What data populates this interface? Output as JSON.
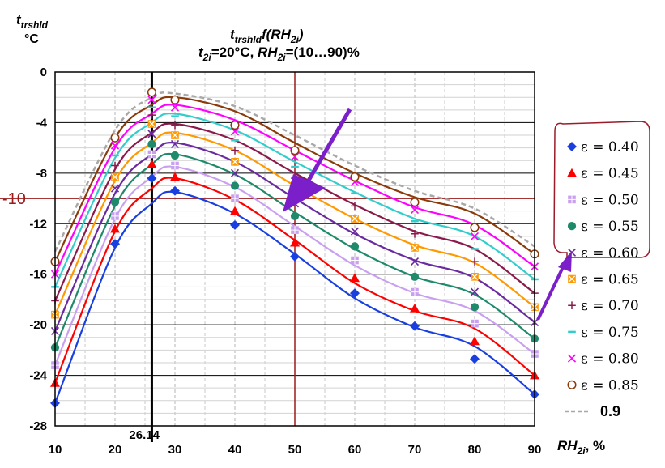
{
  "chart_data": {
    "type": "line",
    "title_main": "f(RH",
    "title_func_var": "t",
    "title_func_sub": "trshld",
    "title_sub_func": "2i",
    "title_close": ")",
    "title_line2_var": "t",
    "title_line2_sub": "2i",
    "title_line2_mid": "=20°C, ",
    "title_line2_rh": "RH",
    "title_line2_rh_sub": "2i",
    "title_line2_end": "=(10…90)%",
    "ylabel_var": "t",
    "ylabel_sub": "trshld",
    "ylabel_unit": "°C",
    "xlabel_var": "RH",
    "xlabel_sub": "2i",
    "xlabel_unit": ", %",
    "xlim": [
      10,
      90
    ],
    "ylim": [
      -28,
      0
    ],
    "xticks": [
      10,
      20,
      30,
      40,
      50,
      60,
      70,
      80,
      90
    ],
    "yticks": [
      0,
      -4,
      -8,
      -12,
      -16,
      -20,
      -24,
      -28
    ],
    "vline_x": 26.14,
    "vline_label": "26.14",
    "ref_y": -10,
    "ref_y_label": "-10",
    "ref_x": 50,
    "series": [
      {
        "name": "ε = 0.40",
        "eps_label": "ε = 0.40",
        "color": "#1a3fe0",
        "marker": "diamond",
        "x": [
          10,
          20,
          26.14,
          30,
          40,
          50,
          60,
          70,
          80,
          90
        ],
        "points": [
          -26.2,
          -13.6,
          -8.4,
          -9.4,
          -12.1,
          -14.6,
          -17.5,
          -20.1,
          -22.7,
          -25.5
        ],
        "curve": [
          -26.2,
          -13.9,
          -10.4,
          -9.5,
          -11.2,
          -14.4,
          -17.9,
          -20.2,
          -21.7,
          -25.5
        ]
      },
      {
        "name": "ε = 0.45",
        "eps_label": "ε = 0.45",
        "color": "#ff0000",
        "marker": "triangle",
        "x": [
          10,
          20,
          26.14,
          30,
          40,
          50,
          60,
          70,
          80,
          90
        ],
        "points": [
          -24.6,
          -12.4,
          -7.3,
          -8.3,
          -11.0,
          -13.5,
          -16.3,
          -18.7,
          -21.3,
          -24.0
        ],
        "curve": [
          -24.6,
          -12.6,
          -9.2,
          -8.4,
          -10.1,
          -13.3,
          -16.7,
          -18.9,
          -20.3,
          -24.0
        ]
      },
      {
        "name": "ε = 0.50",
        "eps_label": "ε = 0.50",
        "color": "#c9a0f0",
        "marker": "square-plus",
        "x": [
          10,
          20,
          26.14,
          30,
          40,
          50,
          60,
          70,
          80,
          90
        ],
        "points": [
          -23.2,
          -11.4,
          -6.5,
          -7.4,
          -10.0,
          -12.5,
          -14.9,
          -17.4,
          -19.9,
          -22.3
        ],
        "curve": [
          -23.2,
          -11.6,
          -8.3,
          -7.5,
          -9.1,
          -12.2,
          -15.3,
          -17.5,
          -18.9,
          -22.3
        ]
      },
      {
        "name": "ε = 0.55",
        "eps_label": "ε = 0.55",
        "color": "#1e8a6a",
        "marker": "circle",
        "x": [
          10,
          20,
          26.14,
          30,
          40,
          50,
          60,
          70,
          80,
          90
        ],
        "points": [
          -21.8,
          -10.3,
          -5.7,
          -6.6,
          -9.0,
          -11.4,
          -13.8,
          -16.2,
          -18.6,
          -21.1
        ],
        "curve": [
          -21.8,
          -10.6,
          -7.3,
          -6.5,
          -8.1,
          -11.1,
          -14.0,
          -16.2,
          -17.6,
          -21.1
        ]
      },
      {
        "name": "ε = 0.60",
        "eps_label": "ε = 0.60",
        "color": "#6a2aa0",
        "marker": "x",
        "x": [
          10,
          20,
          26.14,
          30,
          40,
          50,
          60,
          70,
          80,
          90
        ],
        "points": [
          -20.5,
          -9.2,
          -4.9,
          -5.7,
          -8.0,
          -10.4,
          -12.6,
          -15.0,
          -17.4,
          -19.8
        ],
        "curve": [
          -20.5,
          -9.6,
          -6.5,
          -5.6,
          -7.1,
          -10.0,
          -12.8,
          -14.9,
          -16.3,
          -19.8
        ]
      },
      {
        "name": "ε = 0.65",
        "eps_label": "ε = 0.65",
        "color": "#ff9900",
        "marker": "square-x",
        "x": [
          10,
          20,
          26.14,
          30,
          40,
          50,
          60,
          70,
          80,
          90
        ],
        "points": [
          -19.2,
          -8.3,
          -4.1,
          -5.0,
          -7.1,
          -9.3,
          -11.6,
          -13.9,
          -16.2,
          -18.6
        ],
        "curve": [
          -19.2,
          -8.6,
          -5.6,
          -4.8,
          -6.2,
          -9.0,
          -11.6,
          -13.7,
          -15.1,
          -18.6
        ]
      },
      {
        "name": "ε = 0.70",
        "eps_label": "ε = 0.70",
        "color": "#8a1a4a",
        "marker": "plus",
        "x": [
          10,
          20,
          26.14,
          30,
          40,
          50,
          60,
          70,
          80,
          90
        ],
        "points": [
          -18.1,
          -7.4,
          -3.4,
          -4.2,
          -6.2,
          -8.4,
          -10.6,
          -12.8,
          -15.0,
          -17.5
        ],
        "curve": [
          -18.1,
          -7.7,
          -4.8,
          -4.1,
          -5.4,
          -8.0,
          -10.5,
          -12.6,
          -14.0,
          -17.5
        ]
      },
      {
        "name": "ε = 0.75",
        "eps_label": "ε = 0.75",
        "color": "#33cccc",
        "marker": "dash",
        "x": [
          10,
          20,
          26.14,
          30,
          40,
          50,
          60,
          70,
          80,
          90
        ],
        "points": [
          -17.0,
          -6.6,
          -2.8,
          -3.5,
          -5.4,
          -7.5,
          -9.6,
          -11.8,
          -14.0,
          -16.4
        ],
        "curve": [
          -17.0,
          -6.8,
          -4.0,
          -3.3,
          -4.6,
          -7.1,
          -9.5,
          -11.6,
          -13.0,
          -16.4
        ]
      },
      {
        "name": "ε = 0.80",
        "eps_label": "ε = 0.80",
        "color": "#ff00ff",
        "marker": "x",
        "x": [
          10,
          20,
          26.14,
          30,
          40,
          50,
          60,
          70,
          80,
          90
        ],
        "points": [
          -16.0,
          -5.8,
          -2.2,
          -2.8,
          -4.7,
          -6.7,
          -8.7,
          -10.9,
          -13.0,
          -15.4
        ],
        "curve": [
          -16.0,
          -6.0,
          -3.3,
          -2.6,
          -3.8,
          -6.2,
          -8.6,
          -10.7,
          -12.1,
          -15.4
        ]
      },
      {
        "name": "ε = 0.85",
        "eps_label": "ε = 0.85",
        "color": "#8b3a0a",
        "marker": "open-circle",
        "x": [
          10,
          20,
          26.14,
          30,
          40,
          50,
          60,
          70,
          80,
          90
        ],
        "points": [
          -15.0,
          -5.2,
          -1.6,
          -2.2,
          -4.2,
          -6.2,
          -8.3,
          -10.3,
          -12.3,
          -14.4
        ],
        "curve": [
          -15.0,
          -5.2,
          -2.6,
          -2.0,
          -3.1,
          -5.6,
          -8.0,
          -9.9,
          -11.2,
          -14.4
        ]
      },
      {
        "name": "0.9",
        "eps_label": "0.9",
        "color": "#a8a8a8",
        "marker": "none",
        "dashed": true,
        "x": [
          10,
          20,
          26.14,
          30,
          40,
          50,
          60,
          70,
          80,
          90
        ],
        "points": [],
        "curve": [
          -14.2,
          -4.6,
          -2.0,
          -1.7,
          -2.7,
          -5.0,
          -7.4,
          -9.4,
          -10.8,
          -13.8
        ]
      }
    ]
  }
}
